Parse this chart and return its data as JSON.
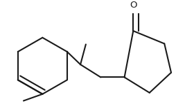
{
  "background_color": "#ffffff",
  "line_color": "#1a1a1a",
  "line_width": 1.5,
  "figsize": [
    2.8,
    1.6
  ],
  "dpi": 100,
  "o_label": "O",
  "o_fontsize": 9.5
}
